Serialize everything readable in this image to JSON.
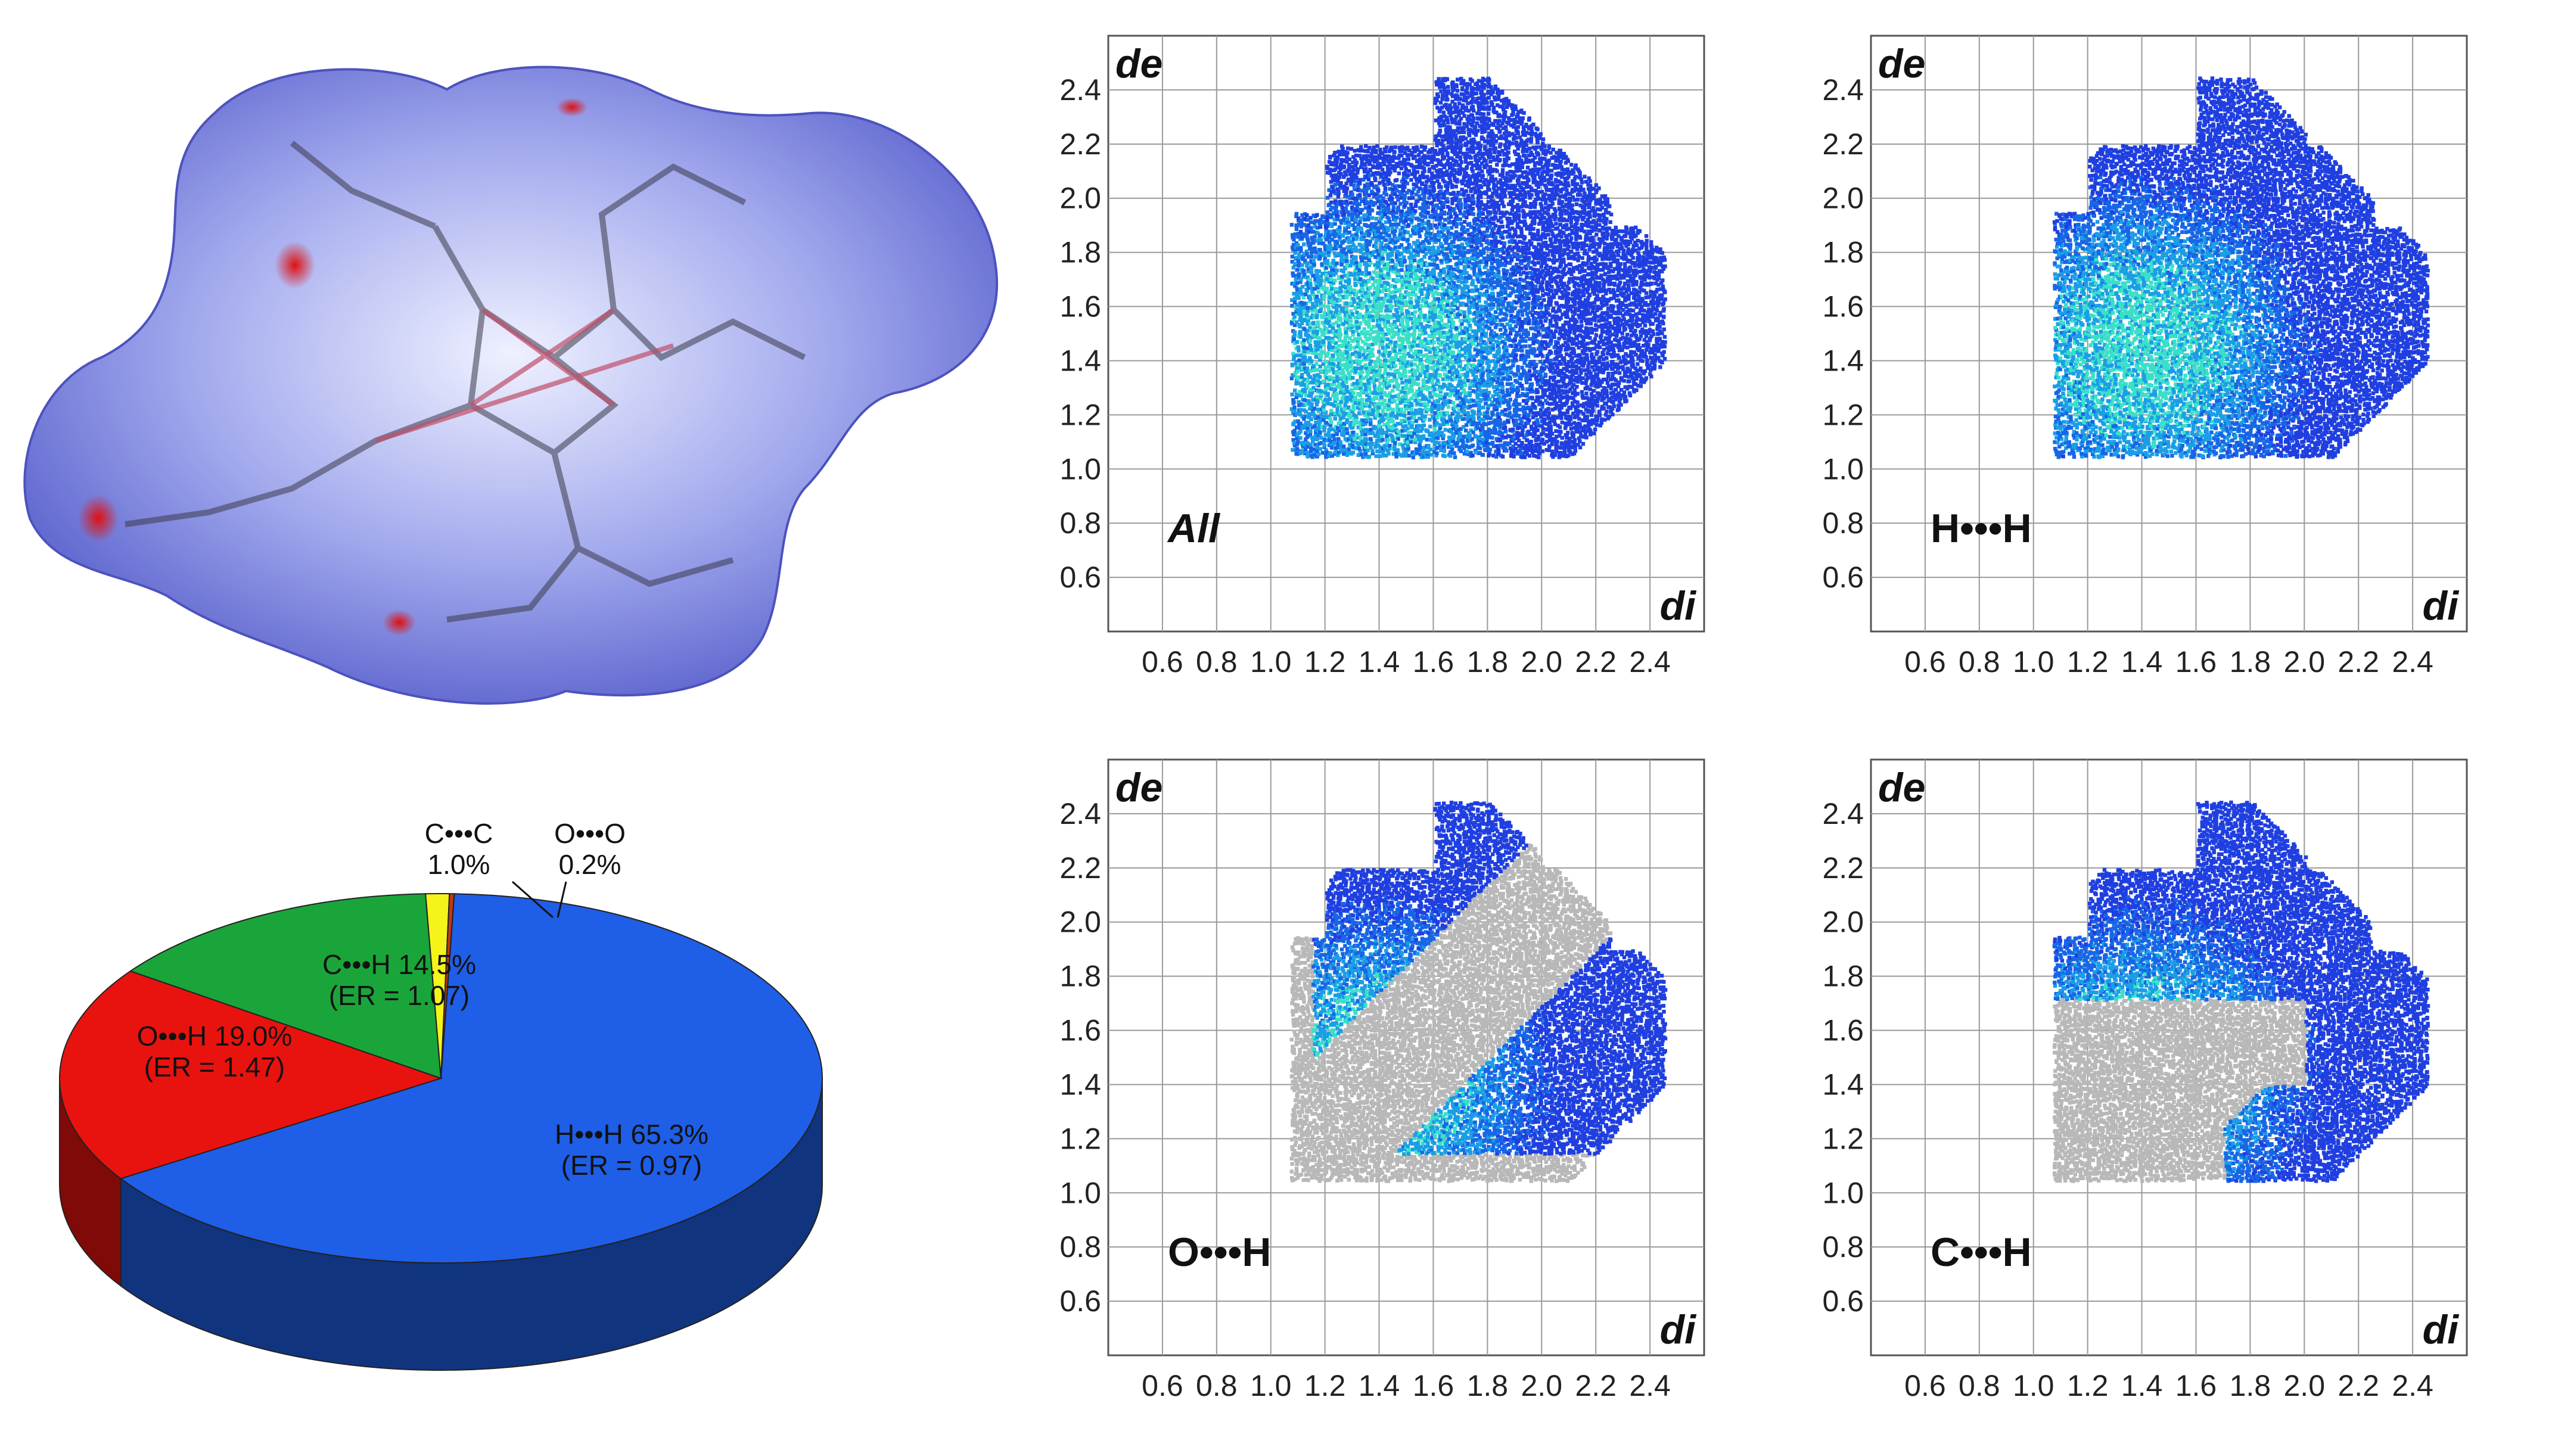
{
  "colors": {
    "hh": "#1f5ee6",
    "oh": "#e8130f",
    "ch": "#1aa53a",
    "cc": "#f4f41a",
    "oo": "#c03a10",
    "surface": "#6a72d8",
    "background_points": "#b8b8b8",
    "grid": "#9a9a9a"
  },
  "molecule": {
    "description_icon": "hirshfeld-surface-molecule"
  },
  "chart_data": [
    {
      "type": "pie",
      "slices": [
        {
          "key": "hh",
          "label": "H•••H 65.3%",
          "sub": "(ER = 0.97)",
          "value": 65.3
        },
        {
          "key": "oh",
          "label": "O•••H 19.0%",
          "sub": "(ER = 1.47)",
          "value": 19.0
        },
        {
          "key": "ch",
          "label": "C•••H 14.5%",
          "sub": "(ER = 1.07)",
          "value": 14.5
        },
        {
          "key": "cc",
          "label": "C•••C",
          "sub": "1.0%",
          "value": 1.0
        },
        {
          "key": "oo",
          "label": "O•••O",
          "sub": "0.2%",
          "value": 0.2
        }
      ]
    },
    {
      "type": "scatter",
      "panel": "All",
      "xlabel": "di",
      "ylabel": "de",
      "xlim": [
        0.4,
        2.6
      ],
      "ylim": [
        0.4,
        2.6
      ],
      "xticks": [
        "0.6",
        "0.8",
        "1.0",
        "1.2",
        "1.4",
        "1.6",
        "1.8",
        "2.0",
        "2.2",
        "2.4"
      ],
      "yticks": [
        "0.6",
        "0.8",
        "1.0",
        "1.2",
        "1.4",
        "1.6",
        "1.8",
        "2.0",
        "2.2",
        "2.4"
      ],
      "region": "full"
    },
    {
      "type": "scatter",
      "panel": "H•••H",
      "xlabel": "di",
      "ylabel": "de",
      "xlim": [
        0.4,
        2.6
      ],
      "ylim": [
        0.4,
        2.6
      ],
      "xticks": [
        "0.6",
        "0.8",
        "1.0",
        "1.2",
        "1.4",
        "1.6",
        "1.8",
        "2.0",
        "2.2",
        "2.4"
      ],
      "yticks": [
        "0.6",
        "0.8",
        "1.0",
        "1.2",
        "1.4",
        "1.6",
        "1.8",
        "2.0",
        "2.2",
        "2.4"
      ],
      "region": "hh"
    },
    {
      "type": "scatter",
      "panel": "O•••H",
      "xlabel": "di",
      "ylabel": "de",
      "xlim": [
        0.4,
        2.6
      ],
      "ylim": [
        0.4,
        2.6
      ],
      "xticks": [
        "0.6",
        "0.8",
        "1.0",
        "1.2",
        "1.4",
        "1.6",
        "1.8",
        "2.0",
        "2.2",
        "2.4"
      ],
      "yticks": [
        "0.6",
        "0.8",
        "1.0",
        "1.2",
        "1.4",
        "1.6",
        "1.8",
        "2.0",
        "2.2",
        "2.4"
      ],
      "region": "oh"
    },
    {
      "type": "scatter",
      "panel": "C•••H",
      "xlabel": "di",
      "ylabel": "de",
      "xlim": [
        0.4,
        2.6
      ],
      "ylim": [
        0.4,
        2.6
      ],
      "xticks": [
        "0.6",
        "0.8",
        "1.0",
        "1.2",
        "1.4",
        "1.6",
        "1.8",
        "2.0",
        "2.2",
        "2.4"
      ],
      "yticks": [
        "0.6",
        "0.8",
        "1.0",
        "1.2",
        "1.4",
        "1.6",
        "1.8",
        "2.0",
        "2.2",
        "2.4"
      ],
      "region": "ch"
    }
  ]
}
